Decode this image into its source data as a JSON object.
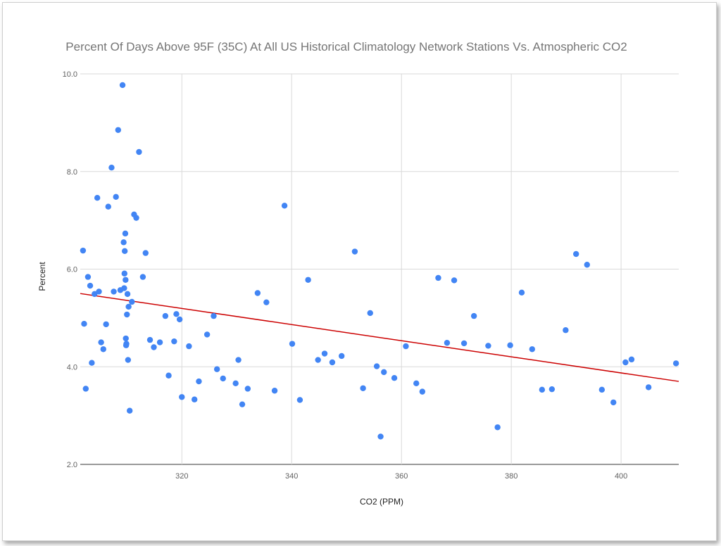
{
  "chart_data": {
    "type": "scatter",
    "title": "Percent Of Days Above 95F (35C) At All US Historical Climatology Network Stations Vs. Atmospheric CO2",
    "xlabel": "CO2 (PPM)",
    "ylabel": "Percent",
    "xlim": [
      301.5,
      410.5
    ],
    "ylim": [
      2.0,
      10.0
    ],
    "xticks": [
      320,
      340,
      360,
      380,
      400
    ],
    "xtick_labels": [
      "320",
      "340",
      "360",
      "380",
      "400"
    ],
    "yticks": [
      2.0,
      4.0,
      6.0,
      8.0,
      10.0
    ],
    "ytick_labels": [
      "2.0",
      "4.0",
      "6.0",
      "8.0",
      "10.0"
    ],
    "grid": true,
    "legend": "none",
    "colors": {
      "points": "#4285f4",
      "trendline": "#cc0000",
      "grid": "#d9d9d9"
    },
    "series": [
      {
        "points": [
          [
            302.0,
            6.38
          ],
          [
            302.2,
            4.88
          ],
          [
            302.5,
            3.55
          ],
          [
            302.9,
            5.84
          ],
          [
            303.3,
            5.66
          ],
          [
            303.6,
            4.08
          ],
          [
            304.1,
            5.49
          ],
          [
            304.6,
            7.46
          ],
          [
            304.9,
            5.54
          ],
          [
            305.3,
            4.5
          ],
          [
            305.7,
            4.36
          ],
          [
            306.2,
            4.87
          ],
          [
            306.6,
            7.28
          ],
          [
            307.2,
            8.08
          ],
          [
            307.6,
            5.54
          ],
          [
            308.0,
            7.48
          ],
          [
            308.4,
            8.85
          ],
          [
            308.8,
            5.57
          ],
          [
            309.2,
            9.77
          ],
          [
            309.4,
            6.55
          ],
          [
            309.5,
            5.61
          ],
          [
            309.55,
            5.91
          ],
          [
            309.6,
            6.37
          ],
          [
            309.7,
            6.73
          ],
          [
            309.75,
            5.78
          ],
          [
            309.8,
            4.58
          ],
          [
            309.85,
            4.44
          ],
          [
            309.9,
            4.47
          ],
          [
            310.0,
            5.07
          ],
          [
            310.1,
            5.49
          ],
          [
            310.2,
            4.14
          ],
          [
            310.3,
            5.23
          ],
          [
            310.5,
            3.1
          ],
          [
            310.9,
            5.33
          ],
          [
            311.3,
            7.12
          ],
          [
            311.7,
            7.05
          ],
          [
            312.2,
            8.4
          ],
          [
            312.9,
            5.84
          ],
          [
            313.4,
            6.33
          ],
          [
            314.2,
            4.55
          ],
          [
            314.9,
            4.4
          ],
          [
            316.0,
            4.5
          ],
          [
            317.0,
            5.04
          ],
          [
            317.6,
            3.82
          ],
          [
            318.6,
            4.52
          ],
          [
            319.0,
            5.08
          ],
          [
            319.6,
            4.97
          ],
          [
            320.0,
            3.38
          ],
          [
            321.3,
            4.42
          ],
          [
            322.3,
            3.33
          ],
          [
            323.1,
            3.7
          ],
          [
            324.6,
            4.66
          ],
          [
            325.8,
            5.04
          ],
          [
            326.4,
            3.95
          ],
          [
            327.5,
            3.76
          ],
          [
            329.8,
            3.66
          ],
          [
            330.3,
            4.14
          ],
          [
            331.0,
            3.23
          ],
          [
            332.0,
            3.55
          ],
          [
            333.8,
            5.51
          ],
          [
            335.4,
            5.32
          ],
          [
            336.9,
            3.51
          ],
          [
            338.7,
            7.3
          ],
          [
            340.1,
            4.47
          ],
          [
            341.5,
            3.32
          ],
          [
            343.0,
            5.78
          ],
          [
            344.8,
            4.14
          ],
          [
            346.0,
            4.27
          ],
          [
            347.4,
            4.09
          ],
          [
            349.1,
            4.22
          ],
          [
            351.5,
            6.36
          ],
          [
            353.0,
            3.56
          ],
          [
            354.3,
            5.1
          ],
          [
            355.5,
            4.01
          ],
          [
            356.2,
            2.57
          ],
          [
            356.8,
            3.89
          ],
          [
            358.7,
            3.77
          ],
          [
            360.8,
            4.42
          ],
          [
            362.7,
            3.66
          ],
          [
            363.8,
            3.49
          ],
          [
            366.7,
            5.82
          ],
          [
            368.3,
            4.49
          ],
          [
            369.6,
            5.77
          ],
          [
            371.4,
            4.48
          ],
          [
            373.2,
            5.04
          ],
          [
            375.8,
            4.43
          ],
          [
            377.5,
            2.76
          ],
          [
            379.8,
            4.44
          ],
          [
            381.9,
            5.52
          ],
          [
            383.8,
            4.36
          ],
          [
            385.6,
            3.53
          ],
          [
            387.4,
            3.54
          ],
          [
            389.9,
            4.75
          ],
          [
            391.8,
            6.31
          ],
          [
            393.8,
            6.09
          ],
          [
            396.5,
            3.53
          ],
          [
            398.6,
            3.27
          ],
          [
            400.8,
            4.09
          ],
          [
            401.9,
            4.15
          ],
          [
            405.0,
            3.58
          ],
          [
            410.0,
            4.07
          ]
        ]
      }
    ],
    "trendline": {
      "x": [
        301.5,
        410.5
      ],
      "y": [
        5.5,
        3.7
      ]
    }
  }
}
